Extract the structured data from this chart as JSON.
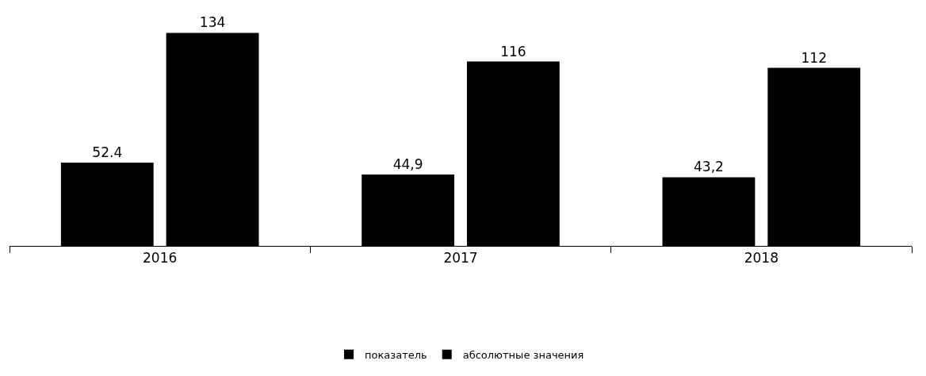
{
  "chart_data": {
    "type": "bar",
    "categories": [
      "2016",
      "2017",
      "2018"
    ],
    "series": [
      {
        "name": "показатель",
        "color": "#000000",
        "values": [
          52.4,
          44.9,
          43.2
        ],
        "value_labels": [
          "52.4",
          "44,9",
          "43,2"
        ]
      },
      {
        "name": "абсолютные значения",
        "color": "#000000",
        "values": [
          134,
          116,
          112
        ],
        "value_labels": [
          "134",
          "116",
          "112"
        ]
      }
    ],
    "legend": "bottom",
    "grid": false
  }
}
